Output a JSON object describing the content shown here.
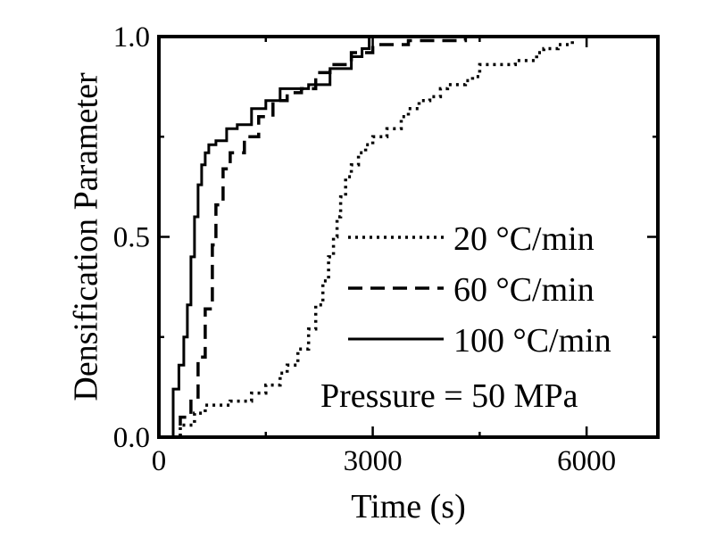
{
  "chart_data": {
    "type": "line",
    "title": "",
    "xlabel": "Time (s)",
    "ylabel": "Densification Parameter",
    "xlim": [
      0,
      7000
    ],
    "ylim": [
      0,
      1.0
    ],
    "x_ticks": [
      0,
      3000,
      6000
    ],
    "x_tick_labels": [
      "0",
      "3000",
      "6000"
    ],
    "y_ticks": [
      0,
      0.5,
      1.0
    ],
    "y_tick_labels": [
      "0.0",
      "0.5",
      "1.0"
    ],
    "grid": false,
    "legend_position": "right",
    "annotation": "Pressure = 50 MPa",
    "series": [
      {
        "name": "20 °C/min",
        "style": "dotted",
        "color": "#000000",
        "x": [
          100,
          300,
          500,
          650,
          1000,
          1300,
          1500,
          1700,
          1800,
          1950,
          2100,
          2200,
          2300,
          2380,
          2450,
          2500,
          2550,
          2620,
          2700,
          2800,
          2900,
          3000,
          3200,
          3400,
          3500,
          3650,
          3800,
          3950,
          4050,
          4300,
          4400,
          4500,
          5000,
          5300,
          5400,
          5600,
          5800
        ],
        "y": [
          0.0,
          0.03,
          0.06,
          0.08,
          0.09,
          0.11,
          0.13,
          0.16,
          0.18,
          0.22,
          0.27,
          0.33,
          0.39,
          0.45,
          0.5,
          0.55,
          0.6,
          0.65,
          0.68,
          0.71,
          0.73,
          0.75,
          0.77,
          0.8,
          0.82,
          0.84,
          0.85,
          0.87,
          0.88,
          0.89,
          0.9,
          0.93,
          0.94,
          0.96,
          0.97,
          0.98,
          1.0
        ]
      },
      {
        "name": "60 °C/min",
        "style": "dashed",
        "color": "#000000",
        "x": [
          150,
          300,
          450,
          550,
          650,
          750,
          800,
          900,
          1000,
          1200,
          1400,
          1600,
          1800,
          2000,
          2200,
          2400,
          2700,
          3000,
          3500,
          4300
        ],
        "y": [
          0.0,
          0.05,
          0.1,
          0.2,
          0.32,
          0.48,
          0.58,
          0.67,
          0.71,
          0.75,
          0.8,
          0.84,
          0.86,
          0.87,
          0.91,
          0.93,
          0.96,
          0.98,
          0.99,
          1.0
        ]
      },
      {
        "name": "100 °C/min",
        "style": "solid",
        "color": "#000000",
        "x": [
          100,
          200,
          280,
          350,
          400,
          450,
          500,
          550,
          600,
          650,
          700,
          800,
          950,
          1100,
          1300,
          1500,
          1700,
          2100,
          2400,
          2700,
          2850,
          2950
        ],
        "y": [
          0.0,
          0.12,
          0.18,
          0.25,
          0.33,
          0.45,
          0.55,
          0.63,
          0.68,
          0.71,
          0.73,
          0.74,
          0.77,
          0.78,
          0.82,
          0.84,
          0.87,
          0.88,
          0.92,
          0.95,
          0.97,
          1.0
        ]
      }
    ]
  }
}
